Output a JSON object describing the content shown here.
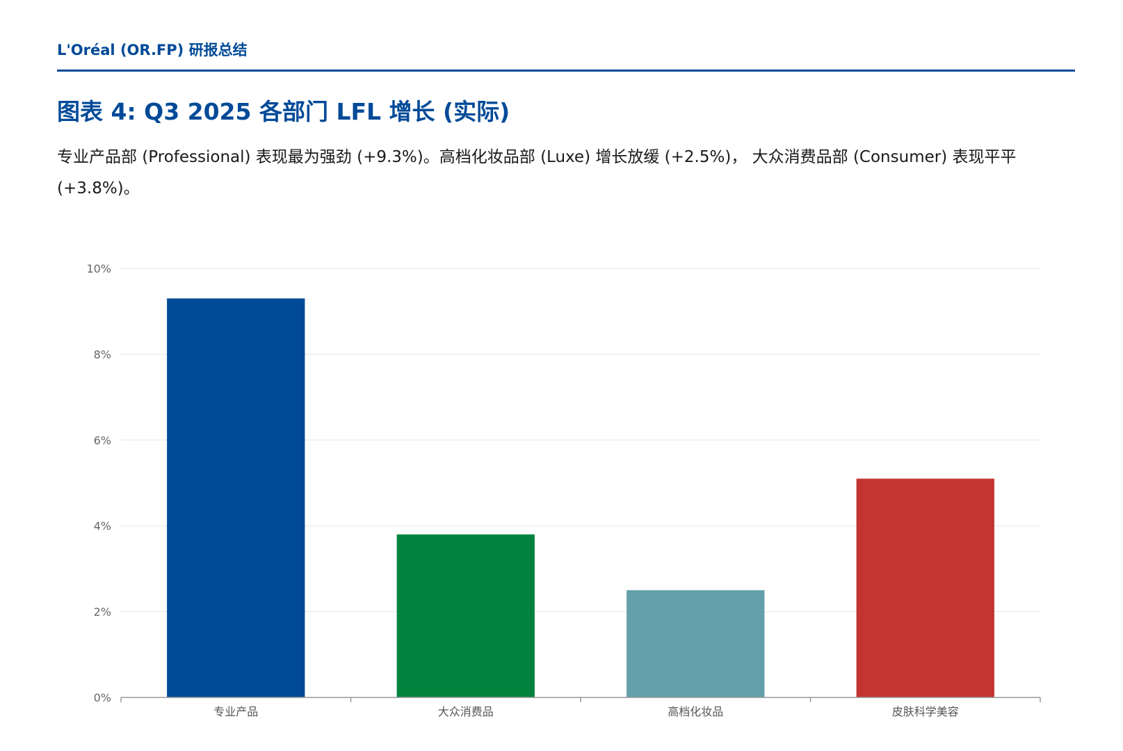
{
  "header": {
    "title": "L'Oréal (OR.FP) 研报总结"
  },
  "figure": {
    "title": "图表 4: Q3 2025 各部门 LFL 增长 (实际)",
    "description": "专业产品部 (Professional) 表现最为强劲 (+9.3%)。高档化妆品部 (Luxe) 增长放缓 (+2.5%)， 大众消费品部 (Consumer) 表现平平 (+3.8%)。"
  },
  "chart_data": {
    "type": "bar",
    "title": "",
    "xlabel": "",
    "ylabel": "",
    "categories": [
      "专业产品",
      "大众消费品",
      "高档化妆品",
      "皮肤科学美容"
    ],
    "values": [
      9.3,
      3.8,
      2.5,
      5.1
    ],
    "colors": [
      "#004a98",
      "#00843d",
      "#62a0aa",
      "#c33531"
    ],
    "ylim": [
      0,
      10
    ],
    "yticks": [
      0,
      2,
      4,
      6,
      8,
      10
    ],
    "ytick_labels": [
      "0%",
      "2%",
      "4%",
      "6%",
      "8%",
      "10%"
    ],
    "grid": true,
    "legend": "none",
    "gridline_color": "#e5e5e5",
    "axis_color": "#999999"
  }
}
